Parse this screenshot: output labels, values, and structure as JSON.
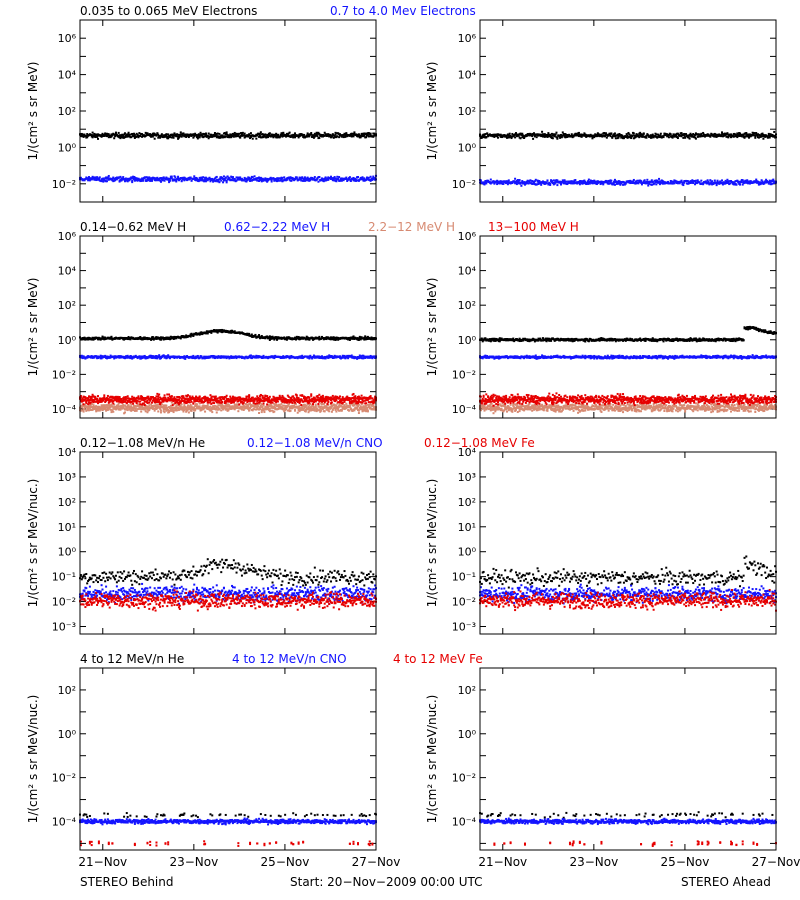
{
  "colors": {
    "black": "#000000",
    "blue": "#1414ff",
    "salmon": "#d78a72",
    "red": "#e60000",
    "frame": "#000000"
  },
  "x_ticks": [
    "21−Nov",
    "23−Nov",
    "25−Nov",
    "27−Nov"
  ],
  "footer": {
    "left": "STEREO Behind",
    "center": "Start: 20−Nov−2009 00:00 UTC",
    "right": "STEREO Ahead"
  },
  "rows": [
    {
      "ylabel": "1/(cm² s sr MeV)",
      "legend": [
        {
          "text": "0.035 to 0.065 MeV Electrons",
          "color": "#000000"
        },
        {
          "text": "0.7 to 4.0 Mev Electrons",
          "color": "#1414ff"
        }
      ]
    },
    {
      "ylabel": "1/(cm² s sr MeV)",
      "legend": [
        {
          "text": "0.14−0.62 MeV H",
          "color": "#000000"
        },
        {
          "text": "0.62−2.22 MeV H",
          "color": "#1414ff"
        },
        {
          "text": "2.2−12 MeV H",
          "color": "#d78a72"
        },
        {
          "text": "13−100 MeV H",
          "color": "#e60000"
        }
      ]
    },
    {
      "ylabel": "1/(cm² s sr MeV/nuc.)",
      "legend": [
        {
          "text": "0.12−1.08 MeV/n He",
          "color": "#000000"
        },
        {
          "text": "0.12−1.08 MeV/n CNO",
          "color": "#1414ff"
        },
        {
          "text": "0.12−1.08 MeV Fe",
          "color": "#e60000"
        }
      ]
    },
    {
      "ylabel": "1/(cm² s sr MeV/nuc.)",
      "legend": [
        {
          "text": "4 to 12 MeV/n He",
          "color": "#000000"
        },
        {
          "text": "4 to 12 MeV/n CNO",
          "color": "#1414ff"
        },
        {
          "text": "4 to 12 MeV Fe",
          "color": "#e60000"
        }
      ]
    }
  ],
  "chart_data": [
    {
      "type": "scatter",
      "panel": "electrons",
      "spacecraft": "STEREO Behind",
      "ylabel": "1/(cm² s sr MeV)",
      "yscale": "log",
      "ylim": [
        0.001,
        10000000
      ],
      "yticks": [
        0.01,
        1,
        100,
        10000,
        1000000
      ],
      "x_range": [
        "20-Nov-2009 12:00",
        "27-Nov-2009 00:00"
      ],
      "series": [
        {
          "name": "0.035 to 0.065 MeV Electrons",
          "color": "#000000",
          "level": 4.5
        },
        {
          "name": "0.7 to 4.0 Mev Electrons",
          "color": "#1414ff",
          "level": 0.018
        }
      ]
    },
    {
      "type": "scatter",
      "panel": "electrons",
      "spacecraft": "STEREO Ahead",
      "ylabel": "1/(cm² s sr MeV)",
      "yscale": "log",
      "ylim": [
        0.001,
        10000000
      ],
      "yticks": [
        0.01,
        1,
        100,
        10000,
        1000000
      ],
      "x_range": [
        "20-Nov-2009 12:00",
        "27-Nov-2009 00:00"
      ],
      "series": [
        {
          "name": "0.035 to 0.065 MeV Electrons",
          "color": "#000000",
          "level": 4.5
        },
        {
          "name": "0.7 to 4.0 Mev Electrons",
          "color": "#1414ff",
          "level": 0.012
        }
      ]
    },
    {
      "type": "scatter",
      "panel": "protons",
      "spacecraft": "STEREO Behind",
      "ylabel": "1/(cm² s sr MeV)",
      "yscale": "log",
      "ylim": [
        3e-05,
        1000000
      ],
      "yticks": [
        0.0001,
        0.01,
        1,
        100,
        10000,
        1000000
      ],
      "series": [
        {
          "name": "0.14−0.62 MeV H",
          "color": "#000000",
          "level": 1.2,
          "bump": {
            "center_day": 23.6,
            "peak": 3.2
          }
        },
        {
          "name": "0.62−2.22 MeV H",
          "color": "#1414ff",
          "level": 0.1
        },
        {
          "name": "2.2−12 MeV H",
          "color": "#d78a72",
          "level": 0.00012
        },
        {
          "name": "13−100 MeV H",
          "color": "#e60000",
          "level": 0.00035
        }
      ]
    },
    {
      "type": "scatter",
      "panel": "protons",
      "spacecraft": "STEREO Ahead",
      "ylabel": "1/(cm² s sr MeV)",
      "yscale": "log",
      "ylim": [
        3e-05,
        1000000
      ],
      "yticks": [
        0.0001,
        0.01,
        1,
        100,
        10000,
        1000000
      ],
      "series": [
        {
          "name": "0.14−0.62 MeV H",
          "color": "#000000",
          "level": 1.0,
          "event": {
            "start_day": 26.3,
            "peak": 5.0,
            "after": 2.0
          }
        },
        {
          "name": "0.62−2.22 MeV H",
          "color": "#1414ff",
          "level": 0.1
        },
        {
          "name": "2.2−12 MeV H",
          "color": "#d78a72",
          "level": 0.00012
        },
        {
          "name": "13−100 MeV H",
          "color": "#e60000",
          "level": 0.00035
        }
      ]
    },
    {
      "type": "scatter",
      "panel": "low-energy ions",
      "spacecraft": "STEREO Behind",
      "ylabel": "1/(cm² s sr MeV/nuc.)",
      "yscale": "log",
      "ylim": [
        0.0005,
        10000
      ],
      "yticks": [
        0.001,
        0.01,
        0.1,
        1,
        10,
        100,
        1000,
        10000
      ],
      "series": [
        {
          "name": "0.12−1.08 MeV/n He",
          "color": "#000000",
          "level": 0.1,
          "bump": {
            "center_day": 23.7,
            "peak": 0.3
          }
        },
        {
          "name": "0.12−1.08 MeV/n CNO",
          "color": "#1414ff",
          "level": 0.02
        },
        {
          "name": "0.12−1.08 MeV Fe",
          "color": "#e60000",
          "level": 0.011
        }
      ]
    },
    {
      "type": "scatter",
      "panel": "low-energy ions",
      "spacecraft": "STEREO Ahead",
      "ylabel": "1/(cm² s sr MeV/nuc.)",
      "yscale": "log",
      "ylim": [
        0.0005,
        10000
      ],
      "yticks": [
        0.001,
        0.01,
        0.1,
        1,
        10,
        100,
        1000,
        10000
      ],
      "series": [
        {
          "name": "0.12−1.08 MeV/n He",
          "color": "#000000",
          "level": 0.09,
          "event": {
            "start_day": 26.3,
            "peak": 0.3
          }
        },
        {
          "name": "0.12−1.08 MeV/n CNO",
          "color": "#1414ff",
          "level": 0.02
        },
        {
          "name": "0.12−1.08 MeV Fe",
          "color": "#e60000",
          "level": 0.011
        }
      ]
    },
    {
      "type": "scatter",
      "panel": "high-energy ions",
      "spacecraft": "STEREO Behind",
      "ylabel": "1/(cm² s sr MeV/nuc.)",
      "yscale": "log",
      "ylim": [
        5e-06,
        1000
      ],
      "yticks": [
        0.0001,
        0.01,
        1,
        100
      ],
      "series": [
        {
          "name": "4 to 12 MeV/n He",
          "color": "#000000",
          "level": 0.0002
        },
        {
          "name": "4 to 12 MeV/n CNO",
          "color": "#1414ff",
          "level": 0.0001
        },
        {
          "name": "4 to 12 MeV Fe",
          "color": "#e60000",
          "level": 1e-05
        }
      ]
    },
    {
      "type": "scatter",
      "panel": "high-energy ions",
      "spacecraft": "STEREO Ahead",
      "ylabel": "1/(cm² s sr MeV/nuc.)",
      "yscale": "log",
      "ylim": [
        5e-06,
        1000
      ],
      "yticks": [
        0.0001,
        0.01,
        1,
        100
      ],
      "series": [
        {
          "name": "4 to 12 MeV/n He",
          "color": "#000000",
          "level": 0.0002
        },
        {
          "name": "4 to 12 MeV/n CNO",
          "color": "#1414ff",
          "level": 0.0001
        },
        {
          "name": "4 to 12 MeV Fe",
          "color": "#e60000",
          "level": 1e-05
        }
      ]
    }
  ]
}
